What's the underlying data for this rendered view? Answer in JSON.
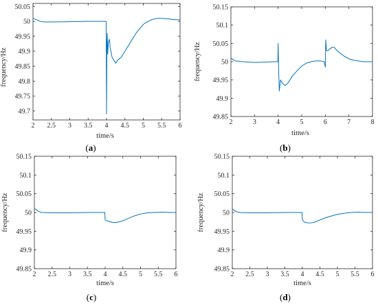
{
  "chart_data": [
    {
      "type": "line",
      "caption": {
        "open": "(",
        "letter": "a",
        "close": ")"
      },
      "xlabel": "time/s",
      "ylabel": "frequency/Hz",
      "xlim": [
        2,
        6
      ],
      "ylim": [
        49.67,
        50.06
      ],
      "xticks": [
        2,
        2.5,
        3,
        3.5,
        4,
        4.5,
        5,
        5.5,
        6
      ],
      "xtick_labels": [
        "2",
        "2.5",
        "3",
        "3.5",
        "4",
        "4.5",
        "5",
        "5.5",
        "6"
      ],
      "yticks": [
        49.7,
        49.75,
        49.8,
        49.85,
        49.9,
        49.95,
        50,
        50.05
      ],
      "ytick_labels": [
        "49.7",
        "49.75",
        "49.8",
        "49.85",
        "49.9",
        "49.95",
        "50",
        "50.05"
      ],
      "series_color": "#0072bd",
      "series": [
        {
          "x": [
            2.0,
            2.1,
            2.2,
            2.3,
            2.5,
            3.0,
            3.5,
            3.9,
            3.99,
            4.0,
            4.01,
            4.02,
            4.03,
            4.05,
            4.08,
            4.1,
            4.12,
            4.15,
            4.2,
            4.25,
            4.3,
            4.4,
            4.5,
            4.6,
            4.7,
            4.8,
            4.9,
            5.0,
            5.1,
            5.2,
            5.3,
            5.4,
            5.5,
            5.6,
            5.7,
            5.8,
            6.0
          ],
          "y": [
            50.01,
            50.005,
            50.0,
            49.998,
            49.998,
            49.999,
            50.0,
            50.0,
            50.0,
            49.69,
            49.93,
            49.96,
            49.89,
            49.93,
            49.94,
            49.91,
            49.9,
            49.88,
            49.87,
            49.86,
            49.87,
            49.88,
            49.9,
            49.92,
            49.94,
            49.96,
            49.975,
            49.99,
            49.998,
            50.004,
            50.008,
            50.01,
            50.01,
            50.009,
            50.008,
            50.006,
            50.005
          ]
        }
      ]
    },
    {
      "type": "line",
      "caption": {
        "open": "(",
        "letter": "b",
        "close": ")"
      },
      "xlabel": "time/s",
      "ylabel": "frequency/Hz",
      "xlim": [
        2,
        8
      ],
      "ylim": [
        49.85,
        50.15
      ],
      "xticks": [
        2,
        3,
        4,
        5,
        6,
        7,
        8
      ],
      "xtick_labels": [
        "2",
        "3",
        "4",
        "5",
        "6",
        "7",
        "8"
      ],
      "yticks": [
        49.85,
        49.9,
        49.95,
        50,
        50.05,
        50.1,
        50.15
      ],
      "ytick_labels": [
        "49.85",
        "49.9",
        "49.95",
        "50",
        "50.05",
        "50.1",
        "50.15"
      ],
      "series_color": "#0072bd",
      "series": [
        {
          "x": [
            2.0,
            2.1,
            2.2,
            2.5,
            3.0,
            3.5,
            3.9,
            3.99,
            4.0,
            4.02,
            4.05,
            4.1,
            4.15,
            4.2,
            4.3,
            4.4,
            4.5,
            4.6,
            4.8,
            5.0,
            5.2,
            5.4,
            5.6,
            5.8,
            5.95,
            6.0,
            6.02,
            6.05,
            6.1,
            6.2,
            6.3,
            6.4,
            6.5,
            6.6,
            6.8,
            7.0,
            7.2,
            7.4,
            7.6,
            7.8,
            8.0
          ],
          "y": [
            50.01,
            50.005,
            50.002,
            50.0,
            49.998,
            49.999,
            50.0,
            50.0,
            50.05,
            49.98,
            49.92,
            49.95,
            49.945,
            49.94,
            49.935,
            49.94,
            49.95,
            49.96,
            49.975,
            49.988,
            49.996,
            50.0,
            50.002,
            50.002,
            50.0,
            49.985,
            50.06,
            50.03,
            50.03,
            50.035,
            50.04,
            50.038,
            50.03,
            50.025,
            50.015,
            50.008,
            50.004,
            50.002,
            50.0,
            50.0,
            50.0
          ]
        }
      ]
    },
    {
      "type": "line",
      "caption": {
        "open": "(",
        "letter": "c",
        "close": ")"
      },
      "xlabel": "time/s",
      "ylabel": "frequency/Hz",
      "xlim": [
        2,
        6
      ],
      "ylim": [
        49.85,
        50.15
      ],
      "xticks": [
        2,
        2.5,
        3,
        3.5,
        4,
        4.5,
        5,
        5.5,
        6
      ],
      "xtick_labels": [
        "2",
        "2.5",
        "3",
        "3.5",
        "4",
        "4.5",
        "5",
        "5.5",
        "6"
      ],
      "yticks": [
        49.85,
        49.9,
        49.95,
        50,
        50.05,
        50.1,
        50.15
      ],
      "ytick_labels": [
        "49.85",
        "49.9",
        "49.95",
        "50",
        "50.05",
        "50.1",
        "50.15"
      ],
      "series_color": "#0072bd",
      "series": [
        {
          "x": [
            2.0,
            2.05,
            2.1,
            2.2,
            2.5,
            3.0,
            3.5,
            3.9,
            3.99,
            4.0,
            4.05,
            4.1,
            4.2,
            4.3,
            4.4,
            4.5,
            4.6,
            4.8,
            5.0,
            5.2,
            5.4,
            5.6,
            5.8,
            6.0
          ],
          "y": [
            50.01,
            50.008,
            50.004,
            50.0,
            49.999,
            49.999,
            50.0,
            50.0,
            50.0,
            49.98,
            49.978,
            49.976,
            49.974,
            49.973,
            49.975,
            49.978,
            49.982,
            49.99,
            49.996,
            49.999,
            50.0,
            50.001,
            50.0,
            50.0
          ]
        }
      ]
    },
    {
      "type": "line",
      "caption": {
        "open": "(",
        "letter": "d",
        "close": ")"
      },
      "xlabel": "time/s",
      "ylabel": "frequency/Hz",
      "xlim": [
        2,
        6
      ],
      "ylim": [
        49.85,
        50.15
      ],
      "xticks": [
        2,
        2.5,
        3,
        3.5,
        4,
        4.5,
        5,
        5.5,
        6
      ],
      "xtick_labels": [
        "2",
        "2.5",
        "3",
        "3.5",
        "4",
        "4.5",
        "5",
        "5.5",
        "6"
      ],
      "yticks": [
        49.85,
        49.9,
        49.95,
        50,
        50.05,
        50.1,
        50.15
      ],
      "ytick_labels": [
        "49.85",
        "49.9",
        "49.95",
        "50",
        "50.05",
        "50.1",
        "50.15"
      ],
      "series_color": "#0072bd",
      "series": [
        {
          "x": [
            2.0,
            2.05,
            2.1,
            2.2,
            2.5,
            3.0,
            3.5,
            3.9,
            3.99,
            4.0,
            4.05,
            4.1,
            4.2,
            4.3,
            4.4,
            4.5,
            4.6,
            4.8,
            5.0,
            5.2,
            5.4,
            5.6,
            5.8,
            6.0
          ],
          "y": [
            50.01,
            50.006,
            50.003,
            50.0,
            49.999,
            49.999,
            50.0,
            50.0,
            50.0,
            49.98,
            49.975,
            49.973,
            49.972,
            49.973,
            49.976,
            49.98,
            49.984,
            49.99,
            49.995,
            49.998,
            50.0,
            50.001,
            50.0,
            50.0
          ]
        }
      ]
    }
  ]
}
